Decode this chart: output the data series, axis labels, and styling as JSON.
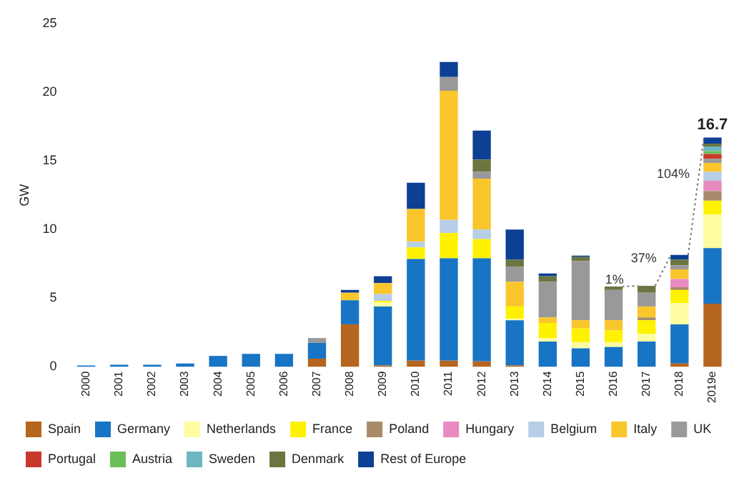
{
  "chart_data": {
    "type": "bar",
    "stacked": true,
    "ylabel": "GW",
    "categories": [
      "2000",
      "2001",
      "2002",
      "2003",
      "2004",
      "2005",
      "2006",
      "2007",
      "2008",
      "2009",
      "2010",
      "2011",
      "2012",
      "2013",
      "2014",
      "2015",
      "2016",
      "2017",
      "2018",
      "2019e"
    ],
    "ylim": [
      0,
      25
    ],
    "yticks": [
      0,
      5,
      10,
      15,
      20,
      25
    ],
    "grid": false,
    "legend": "bottom",
    "totals": [
      null,
      null,
      null,
      null,
      null,
      null,
      null,
      null,
      null,
      null,
      null,
      null,
      null,
      null,
      null,
      null,
      null,
      null,
      null,
      "16.7"
    ],
    "annotations": [
      {
        "text": "1%",
        "x": "2017",
        "y": 6.3
      },
      {
        "text": "37%",
        "x": "2018",
        "y": 7.9
      },
      {
        "text": "104%",
        "x": "2019e",
        "y": 14.0
      }
    ],
    "series": [
      {
        "name": "Spain",
        "color": "#b5651d",
        "values": [
          null,
          null,
          null,
          null,
          null,
          null,
          null,
          0.6,
          3.1,
          0.1,
          0.45,
          0.45,
          0.4,
          0.1,
          null,
          null,
          null,
          null,
          0.25,
          4.6
        ]
      },
      {
        "name": "Germany",
        "color": "#1874c4",
        "values": [
          0.1,
          0.15,
          0.15,
          0.25,
          0.8,
          0.95,
          0.95,
          1.15,
          1.75,
          4.3,
          7.4,
          7.45,
          7.5,
          3.3,
          1.85,
          1.35,
          1.45,
          1.85,
          2.85,
          4.05
        ]
      },
      {
        "name": "Netherlands",
        "color": "#fdfca0",
        "values": [
          null,
          null,
          null,
          null,
          null,
          null,
          null,
          null,
          null,
          0.3,
          null,
          null,
          null,
          0.1,
          0.25,
          0.45,
          0.35,
          0.55,
          1.55,
          2.45
        ]
      },
      {
        "name": "France",
        "color": "#fef200",
        "values": [
          null,
          null,
          null,
          null,
          null,
          null,
          null,
          null,
          null,
          0.1,
          0.85,
          1.85,
          1.4,
          0.9,
          1.1,
          1.0,
          0.85,
          1.0,
          0.95,
          1.0
        ]
      },
      {
        "name": "Poland",
        "color": "#a88b6a",
        "values": [
          null,
          null,
          null,
          null,
          null,
          null,
          null,
          null,
          null,
          null,
          null,
          null,
          null,
          null,
          null,
          null,
          null,
          0.2,
          0.2,
          0.7
        ]
      },
      {
        "name": "Hungary",
        "color": "#e98ac0",
        "values": [
          null,
          null,
          null,
          null,
          null,
          null,
          null,
          null,
          null,
          null,
          null,
          null,
          null,
          null,
          null,
          null,
          null,
          null,
          0.6,
          0.75
        ]
      },
      {
        "name": "Belgium",
        "color": "#b8cde6",
        "values": [
          null,
          null,
          null,
          null,
          null,
          null,
          null,
          null,
          null,
          0.5,
          0.4,
          0.95,
          0.7,
          null,
          null,
          null,
          null,
          null,
          null,
          0.65
        ]
      },
      {
        "name": "Italy",
        "color": "#f9c62c",
        "values": [
          null,
          null,
          null,
          null,
          null,
          null,
          null,
          null,
          0.55,
          0.8,
          2.4,
          9.4,
          3.7,
          1.8,
          0.4,
          0.6,
          0.75,
          0.8,
          0.7,
          0.65
        ]
      },
      {
        "name": "UK",
        "color": "#999999",
        "values": [
          null,
          null,
          null,
          null,
          null,
          null,
          null,
          0.35,
          null,
          null,
          null,
          1.0,
          0.5,
          1.1,
          2.6,
          4.3,
          2.2,
          1.0,
          0.3,
          0.3
        ]
      },
      {
        "name": "Portugal",
        "color": "#c8392b",
        "values": [
          null,
          null,
          null,
          null,
          null,
          null,
          null,
          null,
          null,
          null,
          null,
          null,
          null,
          null,
          null,
          null,
          null,
          null,
          null,
          0.35
        ]
      },
      {
        "name": "Austria",
        "color": "#6bbf59",
        "values": [
          null,
          null,
          null,
          null,
          null,
          null,
          null,
          null,
          null,
          null,
          null,
          null,
          null,
          null,
          null,
          null,
          null,
          null,
          null,
          0.2
        ]
      },
      {
        "name": "Sweden",
        "color": "#6cb7bf",
        "values": [
          null,
          null,
          null,
          null,
          null,
          null,
          null,
          null,
          null,
          null,
          null,
          null,
          null,
          null,
          null,
          null,
          null,
          null,
          null,
          0.35
        ]
      },
      {
        "name": "Denmark",
        "color": "#6b7540",
        "values": [
          null,
          null,
          null,
          null,
          null,
          null,
          null,
          null,
          null,
          null,
          null,
          null,
          0.9,
          0.5,
          0.4,
          0.3,
          0.25,
          0.5,
          0.4,
          0.2
        ]
      },
      {
        "name": "Rest of Europe",
        "color": "#0d3f94",
        "values": [
          null,
          null,
          null,
          null,
          null,
          null,
          null,
          null,
          0.2,
          0.5,
          1.9,
          1.1,
          2.1,
          2.2,
          0.2,
          0.1,
          null,
          null,
          0.35,
          0.45
        ]
      }
    ]
  }
}
